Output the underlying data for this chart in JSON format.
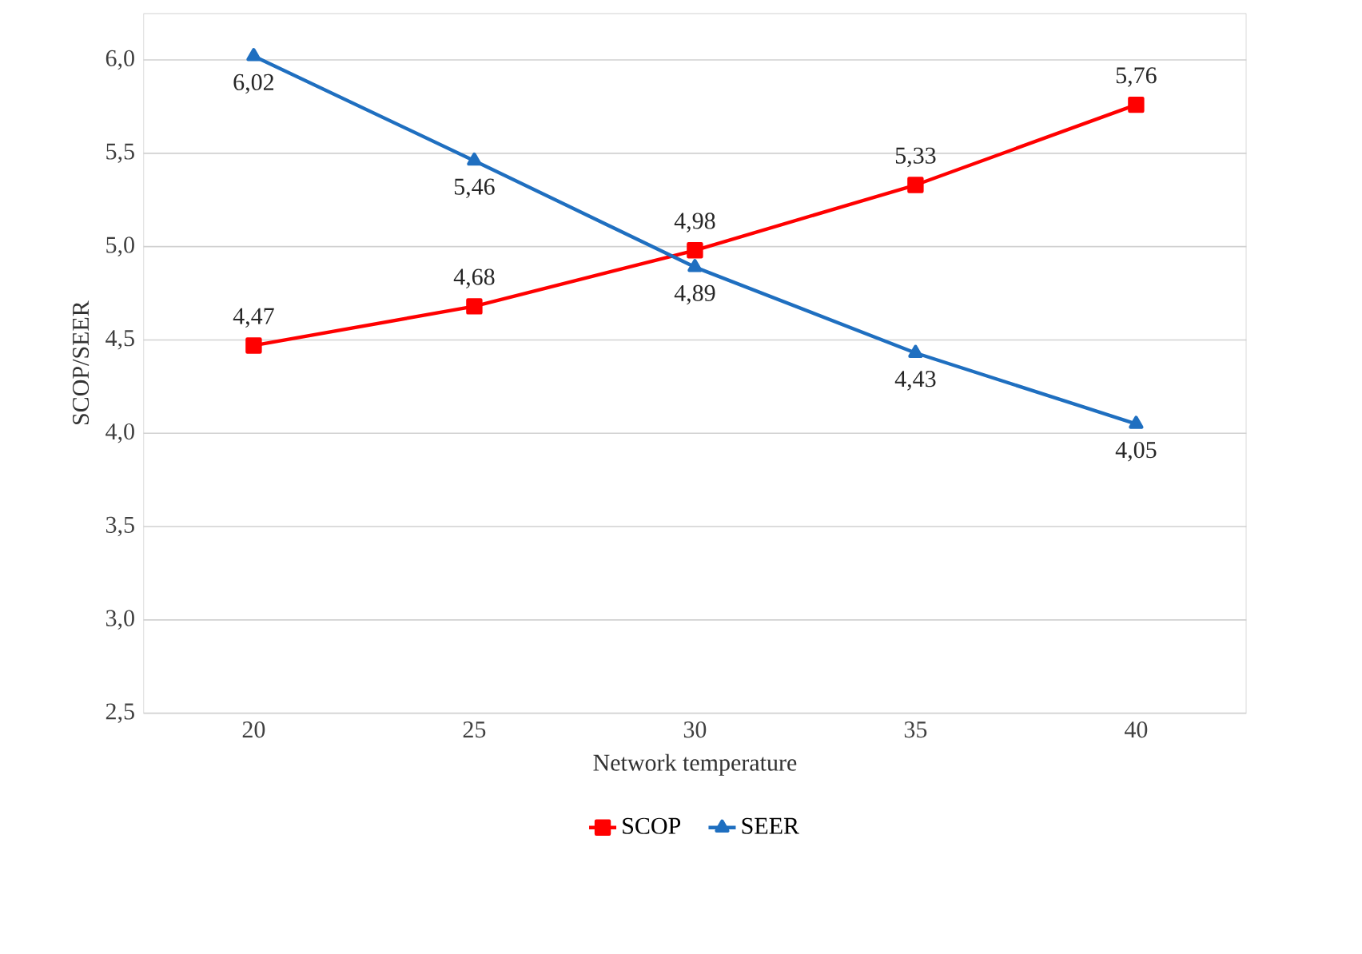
{
  "chart_data": {
    "type": "line",
    "xlabel": "Network temperature",
    "ylabel": "SCOP/SEER",
    "categories": [
      "20",
      "25",
      "30",
      "35",
      "40"
    ],
    "series": [
      {
        "name": "SCOP",
        "color": "#ff0000",
        "marker": "square",
        "values": [
          4.47,
          4.68,
          4.98,
          5.33,
          5.76
        ],
        "value_labels": [
          "4,47",
          "4,68",
          "4,98",
          "5,33",
          "5,76"
        ]
      },
      {
        "name": "SEER",
        "color": "#1f6fc0",
        "marker": "triangle",
        "values": [
          6.02,
          5.46,
          4.89,
          4.43,
          4.05
        ],
        "value_labels": [
          "6,02",
          "5,46",
          "4,89",
          "4,43",
          "4,05"
        ]
      }
    ],
    "ylim": [
      2.5,
      6.25
    ],
    "yticks": [
      {
        "value": 2.5,
        "label": "2,5"
      },
      {
        "value": 3.0,
        "label": "3,0"
      },
      {
        "value": 3.5,
        "label": "3,5"
      },
      {
        "value": 4.0,
        "label": "4,0"
      },
      {
        "value": 4.5,
        "label": "4,5"
      },
      {
        "value": 5.0,
        "label": "5,0"
      },
      {
        "value": 5.5,
        "label": "5,5"
      },
      {
        "value": 6.0,
        "label": "6,0"
      }
    ],
    "grid": "y",
    "legend": "bottom",
    "line_style": "solid"
  }
}
